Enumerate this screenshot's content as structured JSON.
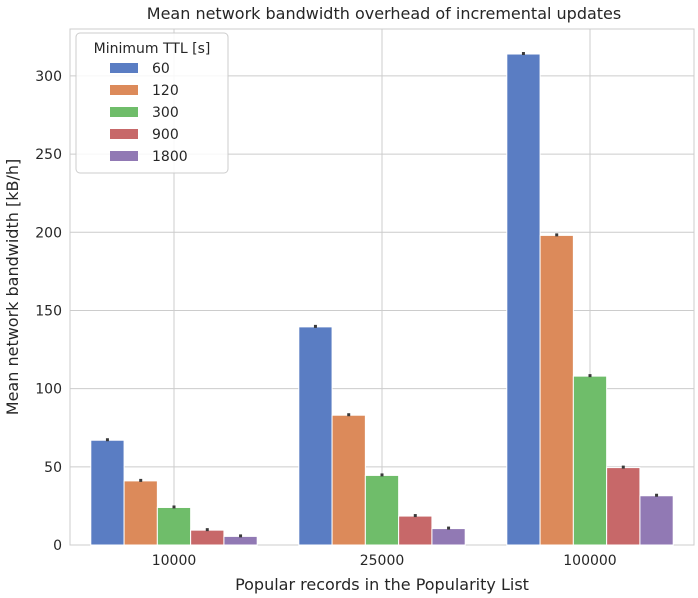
{
  "chart_data": {
    "type": "bar",
    "title": "Mean network bandwidth overhead of incremental updates",
    "xlabel": "Popular records in the Popularity List",
    "ylabel": "Mean network bandwidth [kB/h]",
    "categories": [
      "10000",
      "25000",
      "100000"
    ],
    "ylim": [
      0,
      330
    ],
    "yticks": [
      0,
      50,
      100,
      150,
      200,
      250,
      300
    ],
    "grid": true,
    "legend": {
      "title": "Minimum TTL [s]",
      "placement": "top-left"
    },
    "series": [
      {
        "name": "60",
        "color": "#5a7dc3",
        "values": [
          67,
          139.5,
          314
        ]
      },
      {
        "name": "120",
        "color": "#dc8a5a",
        "values": [
          41,
          83,
          198
        ]
      },
      {
        "name": "300",
        "color": "#6fbd6a",
        "values": [
          24,
          44.5,
          108
        ]
      },
      {
        "name": "900",
        "color": "#c76869",
        "values": [
          9.5,
          18.5,
          49.5
        ]
      },
      {
        "name": "1800",
        "color": "#9179b4",
        "values": [
          5.5,
          10.5,
          31.5
        ]
      }
    ]
  }
}
